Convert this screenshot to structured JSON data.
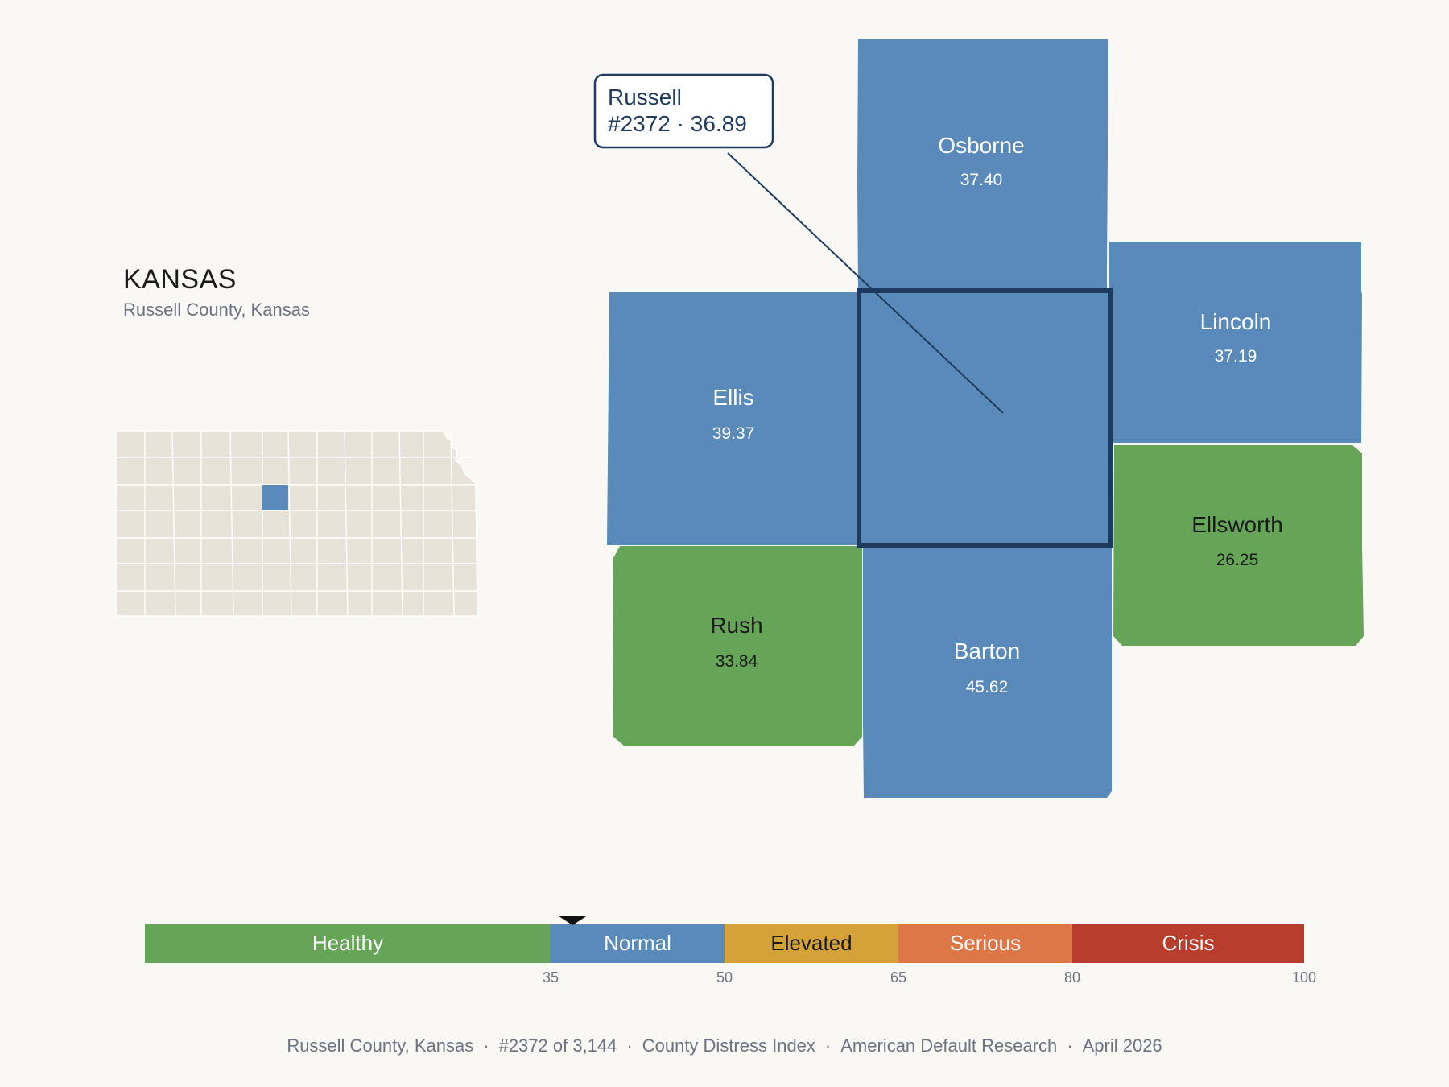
{
  "state": {
    "name": "KANSAS",
    "subtitle": "Russell County, Kansas"
  },
  "focus": {
    "name": "Russell",
    "detail": "#2372 · 36.89",
    "value": 36.89,
    "category": "Normal"
  },
  "neighbors": [
    {
      "name": "Osborne",
      "value": "37.40",
      "category": "Normal"
    },
    {
      "name": "Lincoln",
      "value": "37.19",
      "category": "Normal"
    },
    {
      "name": "Ellis",
      "value": "39.37",
      "category": "Normal"
    },
    {
      "name": "Ellsworth",
      "value": "26.25",
      "category": "Healthy"
    },
    {
      "name": "Rush",
      "value": "33.84",
      "category": "Healthy"
    },
    {
      "name": "Barton",
      "value": "45.62",
      "category": "Normal"
    }
  ],
  "legend": {
    "bands": [
      {
        "label": "Healthy",
        "from": 0,
        "to": 35,
        "color": "#66a558"
      },
      {
        "label": "Normal",
        "from": 35,
        "to": 50,
        "color": "#5a8aba"
      },
      {
        "label": "Elevated",
        "from": 50,
        "to": 65,
        "color": "#d4a238"
      },
      {
        "label": "Serious",
        "from": 65,
        "to": 80,
        "color": "#dd7747"
      },
      {
        "label": "Crisis",
        "from": 80,
        "to": 100,
        "color": "#b93d2d"
      }
    ],
    "ticks": [
      "35",
      "50",
      "65",
      "80",
      "100"
    ],
    "marker_value": 36.89
  },
  "footer": {
    "parts": [
      "Russell County, Kansas",
      "#2372 of 3,144",
      "County Distress Index",
      "American Default Research",
      "April 2026"
    ],
    "separator": "·"
  },
  "colors": {
    "background": "#f9f8f5",
    "inset_fill": "#e8e3d8",
    "highlight": "#5a8aba",
    "outline": "#1f3a5f"
  }
}
